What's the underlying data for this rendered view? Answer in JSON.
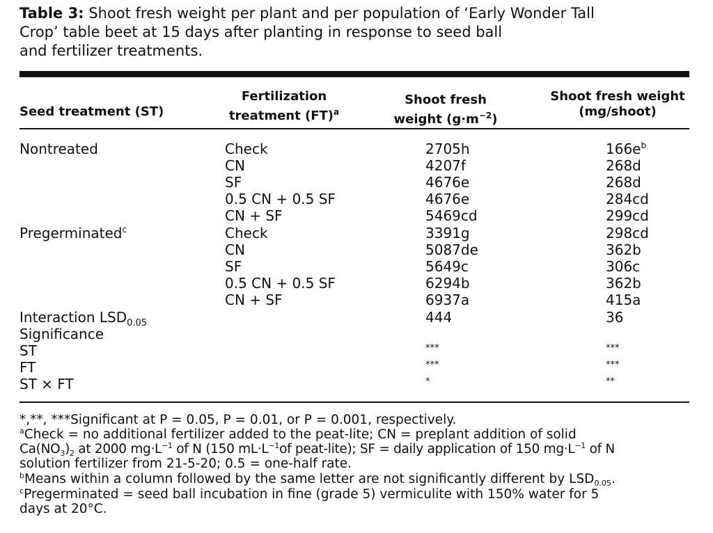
{
  "caption": {
    "label": "Table 3:",
    "line1": "Shoot fresh weight per plant and per population of ‘Early Wonder Tall",
    "line2": "Crop’ table beet at 15 days after planting in response to seed ball",
    "line3": "and fertilizer treatments."
  },
  "headers": {
    "st": "Seed treatment (ST)",
    "ft_line1": "Fertilization",
    "ft_line2": "treatment (FT)",
    "ft_sup": "a",
    "sfw_line1": "Shoot fresh",
    "sfw_line2a": "weight (g·m",
    "sfw_sup": "−2",
    "sfw_line2b": ")",
    "mg_line1": "Shoot fresh weight",
    "mg_line2": "(mg/shoot)"
  },
  "groups": [
    {
      "label": "Nontreated",
      "sup": ""
    },
    {
      "label": "Pregerminated",
      "sup": "c"
    }
  ],
  "rows": [
    {
      "ft": "Check",
      "sfw": "2705h",
      "mg": "166e",
      "mg_sup": "b"
    },
    {
      "ft": "CN",
      "sfw": "4207f",
      "mg": "268d",
      "mg_sup": ""
    },
    {
      "ft": "SF",
      "sfw": "4676e",
      "mg": "268d",
      "mg_sup": ""
    },
    {
      "ft": "0.5 CN + 0.5 SF",
      "sfw": "4676e",
      "mg": "284cd",
      "mg_sup": ""
    },
    {
      "ft": "CN + SF",
      "sfw": "5469cd",
      "mg": "299cd",
      "mg_sup": ""
    },
    {
      "ft": "Check",
      "sfw": "3391g",
      "mg": "298cd",
      "mg_sup": ""
    },
    {
      "ft": "CN",
      "sfw": "5087de",
      "mg": "362b",
      "mg_sup": ""
    },
    {
      "ft": "SF",
      "sfw": "5649c",
      "mg": "306c",
      "mg_sup": ""
    },
    {
      "ft": "0.5 CN + 0.5 SF",
      "sfw": "6294b",
      "mg": "362b",
      "mg_sup": ""
    },
    {
      "ft": "CN + SF",
      "sfw": "6937a",
      "mg": "415a",
      "mg_sup": ""
    }
  ],
  "lsd": {
    "label": "Interaction LSD",
    "sub": "0.05",
    "sfw": "444",
    "mg": "36"
  },
  "significance": {
    "label": "Significance",
    "rows": [
      {
        "label": "ST",
        "sfw": "***",
        "mg": "***"
      },
      {
        "label": "FT",
        "sfw": "***",
        "mg": "***"
      },
      {
        "label": "ST × FT",
        "sfw": "*",
        "mg": "**"
      }
    ]
  },
  "footnotes": {
    "sig_marks": "*,**, ***",
    "sig_text": "Significant at P = 0.05, P = 0.01, or P = 0.001, respectively.",
    "a_mark": "a",
    "a_text1": "Check = no additional fertilizer added to the peat-lite; CN = preplant addition of solid",
    "a_text2a": "Ca(NO",
    "a_text2_sub": "3",
    "a_text2b": ")",
    "a_text2_sub2": "2",
    "a_text2c": " at 2000 mg·L",
    "a_text2_sup": "−1",
    "a_text2d": " of N (150 mL·L",
    "a_text2_sup2": "−1",
    "a_text2e": "of peat-lite); SF = daily application of 150 mg·L",
    "a_text2_sup3": "−1",
    "a_text2f": " of N",
    "a_text3": "solution fertilizer from 21-5-20; 0.5 = one-half rate.",
    "b_mark": "b",
    "b_text": "Means within a column followed by the same letter are not significantly different by LSD",
    "b_sub": "0.05",
    "b_end": ".",
    "c_mark": "c",
    "c_text1": "Pregerminated = seed ball incubation in fine (grade 5) vermiculite with 150% water for 5",
    "c_text2": "days at 20°C."
  }
}
